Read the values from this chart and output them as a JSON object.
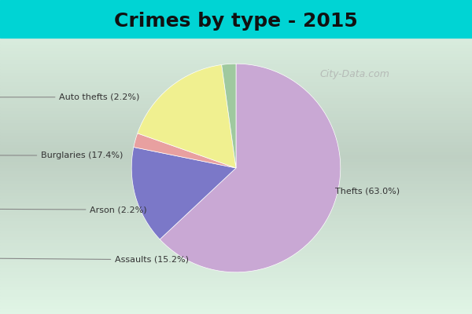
{
  "title": "Crimes by type - 2015",
  "title_fontsize": 18,
  "title_fontweight": "bold",
  "labels": [
    "Thefts (63.0%)",
    "Assaults (15.2%)",
    "Arson (2.2%)",
    "Burglaries (17.4%)",
    "Auto thefts (2.2%)"
  ],
  "label_names": [
    "Thefts",
    "Assaults",
    "Arson",
    "Burglaries",
    "Auto thefts"
  ],
  "percentages": [
    "63.0%",
    "15.2%",
    "2.2%",
    "17.4%",
    "2.2%"
  ],
  "values": [
    63.0,
    15.2,
    2.2,
    17.4,
    2.2
  ],
  "colors": [
    "#c9a8d4",
    "#7b78c8",
    "#e8a0a0",
    "#f0f090",
    "#9fc99f"
  ],
  "background_top": "#00d0d0",
  "background_main": "#d8ede0",
  "startangle": 90,
  "watermark": "City-Data.com"
}
